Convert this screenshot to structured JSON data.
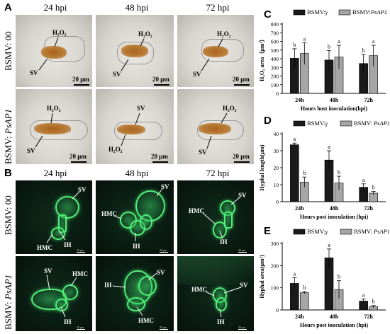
{
  "panel_labels": {
    "a": "A",
    "b": "B",
    "c": "C",
    "d": "D",
    "e": "E"
  },
  "time_labels": [
    "24 hpi",
    "48 hpi",
    "72 hpi"
  ],
  "rows": {
    "bsmv00": "BSMV: 00",
    "bsmvpsap1": "BSMV: PsAP1"
  },
  "row_parts": {
    "prefix": "BSMV: ",
    "ctrl_suffix": "00",
    "ap_suffix": "PsAP1"
  },
  "annotations": {
    "h2o2": "H₂O₂",
    "sv": "SV",
    "hmc": "HMC",
    "ih": "IH"
  },
  "scalebar": "20 μm",
  "fluor_scalebar": "20 μm",
  "colors": {
    "dark_bar": "#1a1a1a",
    "grey_bar": "#a6a6a6",
    "fluor_green": "#52f07a",
    "stain_brown": "#a9651f"
  },
  "chart_data": [
    {
      "id": "C",
      "type": "bar",
      "categories": [
        "24h",
        "48h",
        "72h"
      ],
      "series": [
        {
          "name": "BSMV:γ",
          "name_prefix": "BSMV:",
          "name_italic": "γ",
          "values": [
            405,
            385,
            345
          ],
          "errors": [
            110,
            110,
            105
          ],
          "letters": [
            "b",
            "b",
            "b"
          ]
        },
        {
          "name": "BSMV:PsAP1",
          "name_prefix": "BSMV:",
          "name_italic": "PsAP1",
          "values": [
            460,
            420,
            435
          ],
          "errors": [
            125,
            135,
            120
          ],
          "letters": [
            "a",
            "a",
            "a"
          ]
        }
      ],
      "ylabel": "H₂O₂ area（μm²）",
      "xlabel": "Hours host inoculation(hpi)",
      "ylim": [
        0,
        800
      ],
      "yticks": [
        0,
        100,
        200,
        300,
        400,
        500,
        600,
        700,
        800
      ]
    },
    {
      "id": "D",
      "type": "bar",
      "categories": [
        "24h",
        "48h",
        "72h"
      ],
      "series": [
        {
          "name": "BSMV:γ",
          "name_prefix": "BSMV:",
          "name_italic": "γ",
          "values": [
            33.5,
            24.5,
            8.5
          ],
          "errors": [
            1,
            5.5,
            2
          ],
          "letters": [
            "a",
            "a",
            "a"
          ]
        },
        {
          "name": "BSMV: PsAP1",
          "name_prefix": "BSMV: ",
          "name_italic": "PsAP1",
          "values": [
            11.5,
            11,
            5
          ],
          "errors": [
            3,
            4,
            1
          ],
          "letters": [
            "b",
            "b",
            "b"
          ]
        }
      ],
      "ylabel": "Hyphal length(μm)",
      "xlabel": "Hours post inoculation (hpi)",
      "ylim": [
        0,
        40
      ],
      "yticks": [
        0,
        10,
        20,
        30,
        40
      ]
    },
    {
      "id": "E",
      "type": "bar",
      "categories": [
        "24h",
        "48h",
        "72h"
      ],
      "series": [
        {
          "name": "BSMV:γ",
          "name_prefix": "BSMV:",
          "name_italic": "γ",
          "values": [
            120,
            235,
            40
          ],
          "errors": [
            25,
            40,
            10
          ],
          "letters": [
            "a",
            "a",
            "a"
          ]
        },
        {
          "name": "BSMV: PsAP1",
          "name_prefix": "BSMV: ",
          "name_italic": "PsAP1",
          "values": [
            78,
            92,
            15
          ],
          "errors": [
            5,
            40,
            5
          ],
          "letters": [
            "b",
            "b",
            "b"
          ]
        }
      ],
      "ylabel": "Hyphal area(μm²)",
      "xlabel": "Hours post inoculation (hpi)",
      "ylim": [
        0,
        300
      ],
      "yticks": [
        0,
        100,
        200,
        300
      ]
    }
  ]
}
